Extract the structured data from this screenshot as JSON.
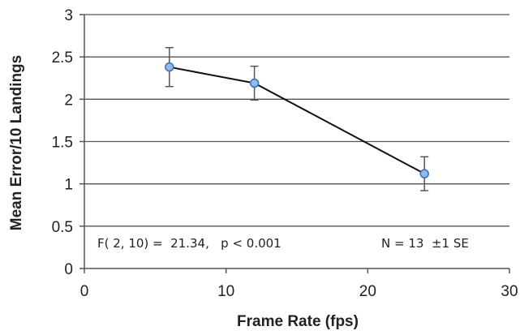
{
  "chart_data": {
    "type": "line",
    "title": "",
    "xlabel": "Frame Rate (fps)",
    "ylabel": "Mean Error/10 Landings",
    "xlim": [
      0,
      30
    ],
    "ylim": [
      0,
      3
    ],
    "x_ticks": [
      "0",
      "10",
      "20",
      "30"
    ],
    "y_ticks": [
      "0",
      "0.5",
      "1",
      "1.5",
      "2",
      "2.5",
      "3"
    ],
    "grid": true,
    "series": [
      {
        "x": [
          6,
          12,
          24
        ],
        "values": [
          2.38,
          2.19,
          1.12
        ],
        "error": [
          0.23,
          0.2,
          0.2
        ]
      }
    ],
    "annotations": {
      "stat": "F( 2, 10) =  21.34,   p < 0.001",
      "n": "N = 13  ±1 SE"
    },
    "colors": {
      "marker_fill": "#8fb9f0",
      "marker_stroke": "#3a6fb8",
      "line": "#111111",
      "grid": "#555555"
    }
  }
}
